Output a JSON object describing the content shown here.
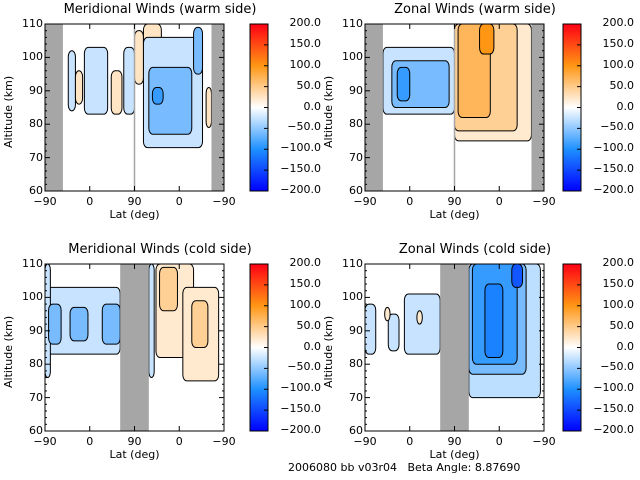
{
  "footer": {
    "id_text": "2006080 bb v03r04",
    "beta_text": "Beta Angle: 8.87690"
  },
  "chart_data": [
    {
      "type": "heatmap",
      "title": "Meridional Winds (warm side)",
      "xlabel": "Lat (deg)",
      "ylabel": "Altitude (km)",
      "xtick_labels": [
        "-90",
        "0",
        "90",
        "0",
        "-90"
      ],
      "ylim": [
        60,
        110
      ],
      "ytick_labels": [
        "60",
        "70",
        "80",
        "90",
        "100",
        "110"
      ],
      "colorbar": {
        "range": [
          -200,
          200
        ],
        "tick_labels": [
          "200.0",
          "150.0",
          "100.0",
          "50.0",
          "0.0",
          "-50.0",
          "-100.0",
          "-150.0",
          "-200.0"
        ]
      },
      "masked_regions": [
        {
          "lat_index_range": [
            0,
            0.1
          ]
        },
        {
          "lat_index_range": [
            0.93,
            1.0
          ]
        }
      ],
      "separator_at": 0.5,
      "regions": [
        {
          "x": [
            0.13,
            0.17
          ],
          "y": [
            84,
            102
          ],
          "value": -25
        },
        {
          "x": [
            0.17,
            0.21
          ],
          "y": [
            86,
            96
          ],
          "value": 25
        },
        {
          "x": [
            0.22,
            0.35
          ],
          "y": [
            83,
            103
          ],
          "value": -25
        },
        {
          "x": [
            0.37,
            0.43
          ],
          "y": [
            83,
            96
          ],
          "value": 25
        },
        {
          "x": [
            0.44,
            0.5
          ],
          "y": [
            83,
            103
          ],
          "value": -25
        },
        {
          "x": [
            0.5,
            0.55
          ],
          "y": [
            92,
            108
          ],
          "value": 25
        },
        {
          "x": [
            0.55,
            0.65
          ],
          "y": [
            102,
            110
          ],
          "value": 25
        },
        {
          "x": [
            0.55,
            0.88
          ],
          "y": [
            73,
            106
          ],
          "value": -25
        },
        {
          "x": [
            0.58,
            0.82
          ],
          "y": [
            77,
            97
          ],
          "value": -60
        },
        {
          "x": [
            0.6,
            0.66
          ],
          "y": [
            86,
            91
          ],
          "value": -90
        },
        {
          "x": [
            0.83,
            0.88
          ],
          "y": [
            95,
            109
          ],
          "value": -60
        },
        {
          "x": [
            0.9,
            0.93
          ],
          "y": [
            79,
            91
          ],
          "value": 25
        }
      ]
    },
    {
      "type": "heatmap",
      "title": "Zonal Winds (warm side)",
      "xlabel": "Lat (deg)",
      "ylabel": "Altitude (km)",
      "xtick_labels": [
        "-90",
        "0",
        "90",
        "0",
        "-90"
      ],
      "ylim": [
        60,
        110
      ],
      "ytick_labels": [
        "60",
        "70",
        "80",
        "90",
        "100",
        "110"
      ],
      "colorbar": {
        "range": [
          -200,
          200
        ],
        "tick_labels": [
          "200.0",
          "150.0",
          "100.0",
          "50.0",
          "0.0",
          "-50.0",
          "-100.0",
          "-150.0",
          "-200.0"
        ]
      },
      "masked_regions": [
        {
          "lat_index_range": [
            0,
            0.1
          ]
        },
        {
          "lat_index_range": [
            0.93,
            1.0
          ]
        }
      ],
      "separator_at": 0.5,
      "regions": [
        {
          "x": [
            0.1,
            0.5
          ],
          "y": [
            83,
            103
          ],
          "value": -25
        },
        {
          "x": [
            0.15,
            0.47
          ],
          "y": [
            85,
            99
          ],
          "value": -60
        },
        {
          "x": [
            0.18,
            0.25
          ],
          "y": [
            87,
            97
          ],
          "value": -90
        },
        {
          "x": [
            0.5,
            0.93
          ],
          "y": [
            75,
            110
          ],
          "value": 20
        },
        {
          "x": [
            0.5,
            0.85
          ],
          "y": [
            78,
            110
          ],
          "value": 45
        },
        {
          "x": [
            0.52,
            0.7
          ],
          "y": [
            82,
            110
          ],
          "value": 70
        },
        {
          "x": [
            0.64,
            0.72
          ],
          "y": [
            101,
            110
          ],
          "value": 100
        }
      ]
    },
    {
      "type": "heatmap",
      "title": "Meridional Winds (cold side)",
      "xlabel": "Lat (deg)",
      "ylabel": "Altitude (km)",
      "xtick_labels": [
        "-90",
        "0",
        "90",
        "0",
        "-90"
      ],
      "ylim": [
        60,
        110
      ],
      "ytick_labels": [
        "60",
        "70",
        "80",
        "90",
        "100",
        "110"
      ],
      "colorbar": {
        "range": [
          -200,
          200
        ],
        "tick_labels": [
          "200.0",
          "150.0",
          "100.0",
          "50.0",
          "0.0",
          "-50.0",
          "-100.0",
          "-150.0",
          "-200.0"
        ]
      },
      "masked_regions": [
        {
          "lat_index_range": [
            0.42,
            0.58
          ]
        }
      ],
      "separator_at": 0.5,
      "regions": [
        {
          "x": [
            0.0,
            0.42
          ],
          "y": [
            83,
            103
          ],
          "value": -25
        },
        {
          "x": [
            0.0,
            0.03
          ],
          "y": [
            76,
            110
          ],
          "value": -25
        },
        {
          "x": [
            0.02,
            0.09
          ],
          "y": [
            86,
            98
          ],
          "value": -60
        },
        {
          "x": [
            0.14,
            0.24
          ],
          "y": [
            87,
            97
          ],
          "value": -60
        },
        {
          "x": [
            0.32,
            0.42
          ],
          "y": [
            86,
            98
          ],
          "value": -60
        },
        {
          "x": [
            0.58,
            0.61
          ],
          "y": [
            76,
            110
          ],
          "value": -25
        },
        {
          "x": [
            0.62,
            0.83
          ],
          "y": [
            82,
            110
          ],
          "value": 20
        },
        {
          "x": [
            0.64,
            0.74
          ],
          "y": [
            96,
            109
          ],
          "value": 45
        },
        {
          "x": [
            0.77,
            0.97
          ],
          "y": [
            75,
            103
          ],
          "value": 20
        },
        {
          "x": [
            0.82,
            0.91
          ],
          "y": [
            85,
            99
          ],
          "value": 45
        }
      ]
    },
    {
      "type": "heatmap",
      "title": "Zonal Winds (cold side)",
      "xlabel": "Lat (deg)",
      "ylabel": "Altitude (km)",
      "xtick_labels": [
        "-90",
        "0",
        "90",
        "0",
        "-90"
      ],
      "ylim": [
        60,
        110
      ],
      "ytick_labels": [
        "60",
        "70",
        "80",
        "90",
        "100",
        "110"
      ],
      "colorbar": {
        "range": [
          -200,
          200
        ],
        "tick_labels": [
          "200.0",
          "150.0",
          "100.0",
          "50.0",
          "0.0",
          "-50.0",
          "-100.0",
          "-150.0",
          "-200.0"
        ]
      },
      "masked_regions": [
        {
          "lat_index_range": [
            0.42,
            0.58
          ]
        }
      ],
      "separator_at": 0.5,
      "regions": [
        {
          "x": [
            0.0,
            0.06
          ],
          "y": [
            83,
            98
          ],
          "value": -25
        },
        {
          "x": [
            0.13,
            0.19
          ],
          "y": [
            84,
            95
          ],
          "value": -25
        },
        {
          "x": [
            0.11,
            0.14
          ],
          "y": [
            93,
            97
          ],
          "value": 20
        },
        {
          "x": [
            0.22,
            0.42
          ],
          "y": [
            83,
            101
          ],
          "value": -25
        },
        {
          "x": [
            0.29,
            0.32
          ],
          "y": [
            92,
            96
          ],
          "value": 20
        },
        {
          "x": [
            0.58,
            0.98
          ],
          "y": [
            70,
            110
          ],
          "value": -30
        },
        {
          "x": [
            0.58,
            0.9
          ],
          "y": [
            77,
            110
          ],
          "value": -60
        },
        {
          "x": [
            0.6,
            0.85
          ],
          "y": [
            80,
            110
          ],
          "value": -90
        },
        {
          "x": [
            0.67,
            0.77
          ],
          "y": [
            82,
            104
          ],
          "value": -110
        },
        {
          "x": [
            0.82,
            0.88
          ],
          "y": [
            103,
            110
          ],
          "value": -140
        }
      ]
    }
  ]
}
